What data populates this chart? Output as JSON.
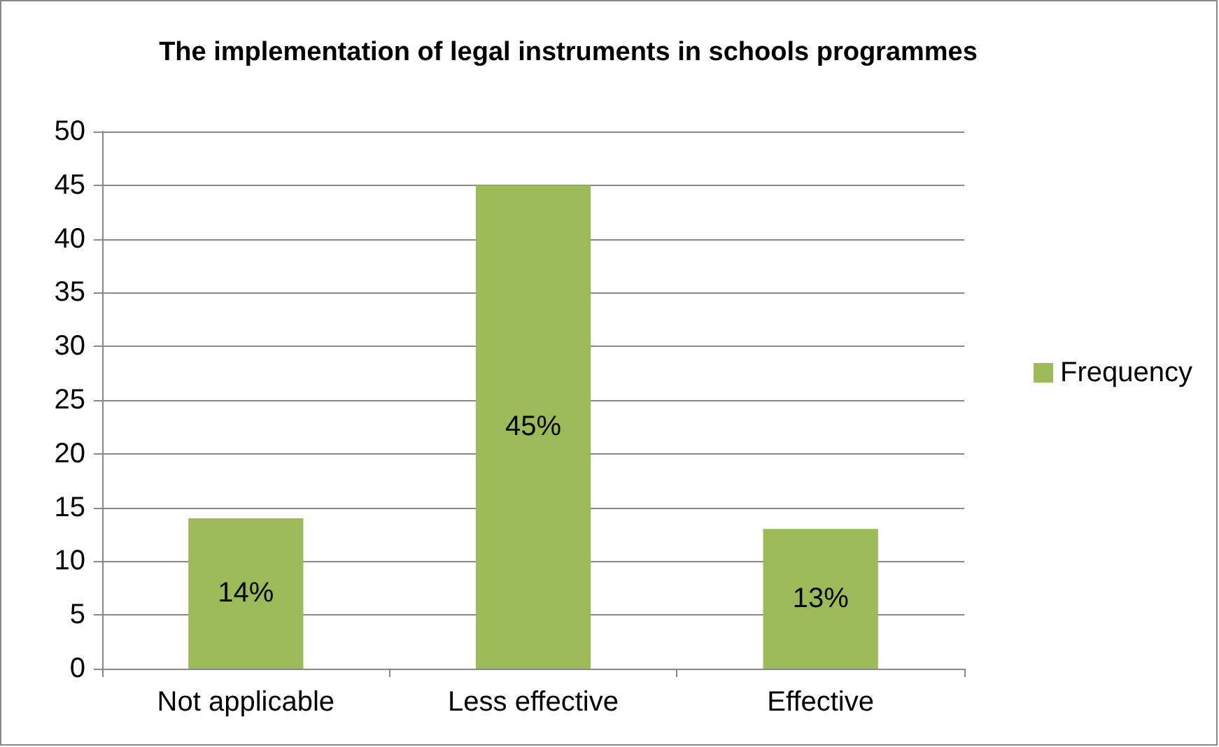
{
  "chart_data": {
    "type": "bar",
    "title": "The implementation of legal instruments in schools programmes",
    "categories": [
      "Not applicable",
      "Less effective",
      "Effective"
    ],
    "series": [
      {
        "name": "Frequency",
        "color": "#9bbb59",
        "values": [
          14,
          45,
          13
        ],
        "value_labels": [
          "14%",
          "45%",
          "13%"
        ]
      }
    ],
    "ylim": [
      0,
      50
    ],
    "yticks": [
      0,
      5,
      10,
      15,
      20,
      25,
      30,
      35,
      40,
      45,
      50
    ],
    "grid": "y",
    "legend": "right"
  }
}
